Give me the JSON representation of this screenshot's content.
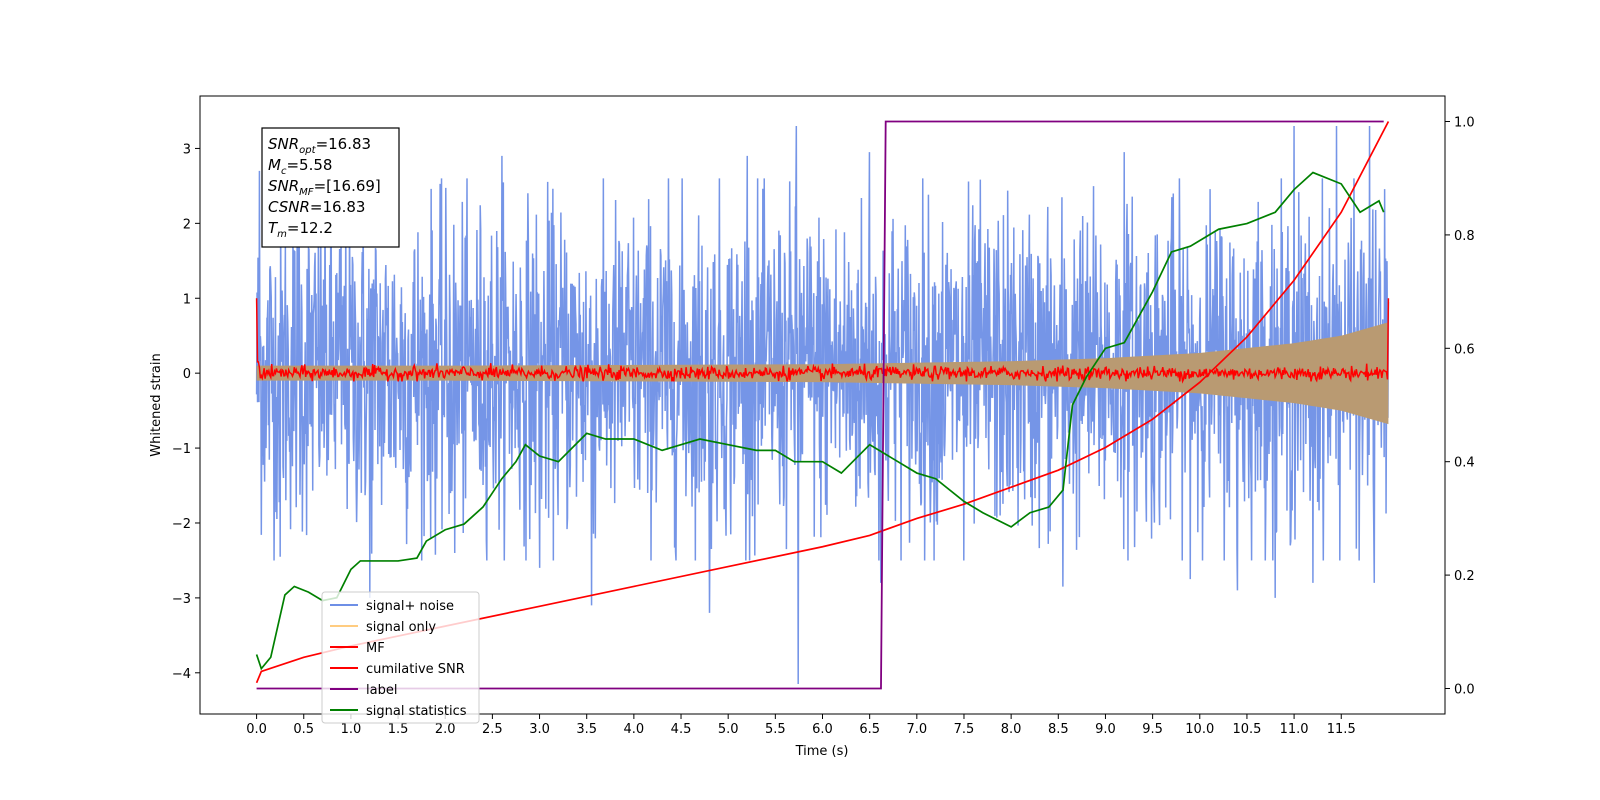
{
  "chart_data": {
    "type": "line",
    "title": "",
    "xlabel": "Time (s)",
    "ylabel": "Whitened strain",
    "xlim": [
      -0.6,
      12.6
    ],
    "ylim": [
      -4.55,
      3.7
    ],
    "y2lim": [
      -0.045,
      1.045
    ],
    "xticks": [
      0.0,
      0.5,
      1.0,
      1.5,
      2.0,
      2.5,
      3.0,
      3.5,
      4.0,
      4.5,
      5.0,
      5.5,
      6.0,
      6.5,
      7.0,
      7.5,
      8.0,
      8.5,
      9.0,
      9.5,
      10.0,
      10.5,
      11.0,
      11.5
    ],
    "xtick_labels": [
      "0.0",
      "0.5",
      "1.0",
      "1.5",
      "2.0",
      "2.5",
      "3.0",
      "3.5",
      "4.0",
      "4.5",
      "5.0",
      "5.5",
      "6.0",
      "6.5",
      "7.0",
      "7.5",
      "8.0",
      "8.5",
      "9.0",
      "9.5",
      "10.0",
      "10.5",
      "11.0",
      "11.5"
    ],
    "yticks": [
      -4,
      -3,
      -2,
      -1,
      0,
      1,
      2,
      3
    ],
    "ytick_labels": [
      "−4",
      "−3",
      "−2",
      "−1",
      "0",
      "1",
      "2",
      "3"
    ],
    "y2ticks": [
      0.0,
      0.2,
      0.4,
      0.6,
      0.8,
      1.0
    ],
    "y2tick_labels": [
      "0.0",
      "0.2",
      "0.4",
      "0.6",
      "0.8",
      "1.0"
    ],
    "grid": false,
    "legend_position": "lower-left",
    "legend": [
      {
        "label": "signal+ noise",
        "color": "#6e8fe6"
      },
      {
        "label": "signal only",
        "color": "#ffcc80"
      },
      {
        "label": "MF",
        "color": "#ff0000"
      },
      {
        "label": "cumilative SNR",
        "color": "#ff0000"
      },
      {
        "label": "label",
        "color": "#800080"
      },
      {
        "label": "signal statistics",
        "color": "#008000"
      }
    ],
    "annotation": [
      {
        "base": "SNR",
        "sub": "opt",
        "rest": "=16.83"
      },
      {
        "base": "M",
        "sub": "c",
        "rest": "=5.58"
      },
      {
        "base": "SNR",
        "sub": "MF",
        "rest": "=[16.69]"
      },
      {
        "base": "CSNR",
        "sub": "",
        "rest": "=16.83"
      },
      {
        "base": "T",
        "sub": "m",
        "rest": "=12.2"
      }
    ],
    "series": [
      {
        "name": "signal+ noise",
        "axis": "left",
        "color": "#6e8fe6",
        "description": "dense noise oscillating roughly between -2 and +2",
        "t_range": [
          0.0,
          12.0
        ],
        "band_low": -1.9,
        "band_high": 2.0,
        "spikes": [
          [
            0.03,
            2.7
          ],
          [
            0.1,
            -1.0
          ],
          [
            0.25,
            -2.45
          ],
          [
            0.45,
            2.2
          ],
          [
            1.2,
            -3.0
          ],
          [
            2.1,
            -2.4
          ],
          [
            2.6,
            2.9
          ],
          [
            3.0,
            -2.6
          ],
          [
            3.55,
            -3.1
          ],
          [
            4.8,
            -3.2
          ],
          [
            5.2,
            2.9
          ],
          [
            5.72,
            3.3
          ],
          [
            5.74,
            -4.15
          ],
          [
            6.5,
            2.95
          ],
          [
            6.62,
            -2.8
          ],
          [
            7.5,
            -2.5
          ],
          [
            8.55,
            -2.85
          ],
          [
            9.2,
            2.95
          ],
          [
            9.9,
            -2.75
          ],
          [
            10.4,
            -2.9
          ],
          [
            10.8,
            -3.0
          ],
          [
            11.0,
            3.3
          ],
          [
            11.2,
            -2.8
          ],
          [
            11.45,
            3.3
          ],
          [
            11.8,
            3.3
          ],
          [
            11.85,
            -2.8
          ]
        ]
      },
      {
        "name": "signal only",
        "axis": "left",
        "color": "#ffcc80",
        "description": "chirp whose amplitude envelope grows with time",
        "t_range": [
          0.0,
          12.0
        ],
        "envelope": [
          [
            0.0,
            0.1
          ],
          [
            2.0,
            0.1
          ],
          [
            4.0,
            0.11
          ],
          [
            6.0,
            0.12
          ],
          [
            7.0,
            0.14
          ],
          [
            8.0,
            0.16
          ],
          [
            9.0,
            0.2
          ],
          [
            10.0,
            0.27
          ],
          [
            11.0,
            0.4
          ],
          [
            11.5,
            0.5
          ],
          [
            12.0,
            0.68
          ]
        ]
      },
      {
        "name": "MF",
        "axis": "left",
        "color": "#ff0000",
        "description": "matched filter output, noisy around 0 with endpoint spikes at 1",
        "t_range": [
          0.0,
          12.0
        ],
        "endpoints": [
          [
            0.0,
            1.0
          ],
          [
            12.0,
            1.0
          ]
        ],
        "band": [
          -0.08,
          0.1
        ]
      },
      {
        "name": "cumilative SNR",
        "axis": "right",
        "x": [
          0.0,
          0.05,
          0.5,
          1.0,
          2.0,
          3.0,
          4.0,
          5.0,
          6.0,
          6.5,
          7.0,
          7.5,
          8.0,
          8.5,
          9.0,
          9.5,
          10.0,
          10.5,
          11.0,
          11.5,
          12.0
        ],
        "y": [
          0.01,
          0.03,
          0.055,
          0.075,
          0.11,
          0.145,
          0.18,
          0.215,
          0.25,
          0.27,
          0.3,
          0.325,
          0.355,
          0.385,
          0.425,
          0.475,
          0.54,
          0.62,
          0.72,
          0.84,
          1.0
        ]
      },
      {
        "name": "label",
        "axis": "right",
        "x": [
          0.0,
          6.62,
          6.67,
          11.95
        ],
        "y": [
          0.0,
          0.0,
          1.0,
          1.0
        ]
      },
      {
        "name": "signal statistics",
        "axis": "right",
        "x": [
          0.0,
          0.05,
          0.15,
          0.3,
          0.4,
          0.55,
          0.7,
          0.85,
          1.0,
          1.1,
          1.3,
          1.5,
          1.7,
          1.8,
          2.0,
          2.2,
          2.4,
          2.6,
          2.75,
          2.85,
          3.0,
          3.2,
          3.5,
          3.7,
          4.0,
          4.3,
          4.5,
          4.7,
          5.0,
          5.3,
          5.5,
          5.7,
          6.0,
          6.2,
          6.5,
          6.8,
          7.0,
          7.2,
          7.5,
          7.7,
          8.0,
          8.2,
          8.4,
          8.55,
          8.65,
          8.8,
          9.0,
          9.2,
          9.5,
          9.7,
          9.9,
          10.2,
          10.5,
          10.8,
          11.0,
          11.2,
          11.5,
          11.7,
          11.9,
          11.95
        ],
        "y": [
          0.06,
          0.035,
          0.055,
          0.165,
          0.18,
          0.17,
          0.155,
          0.16,
          0.21,
          0.225,
          0.225,
          0.225,
          0.23,
          0.26,
          0.28,
          0.29,
          0.32,
          0.37,
          0.4,
          0.43,
          0.41,
          0.4,
          0.45,
          0.44,
          0.44,
          0.42,
          0.43,
          0.44,
          0.43,
          0.42,
          0.42,
          0.4,
          0.4,
          0.38,
          0.43,
          0.4,
          0.38,
          0.37,
          0.33,
          0.31,
          0.285,
          0.31,
          0.32,
          0.35,
          0.5,
          0.55,
          0.6,
          0.61,
          0.7,
          0.77,
          0.78,
          0.81,
          0.82,
          0.84,
          0.88,
          0.91,
          0.89,
          0.84,
          0.86,
          0.84
        ]
      }
    ]
  }
}
